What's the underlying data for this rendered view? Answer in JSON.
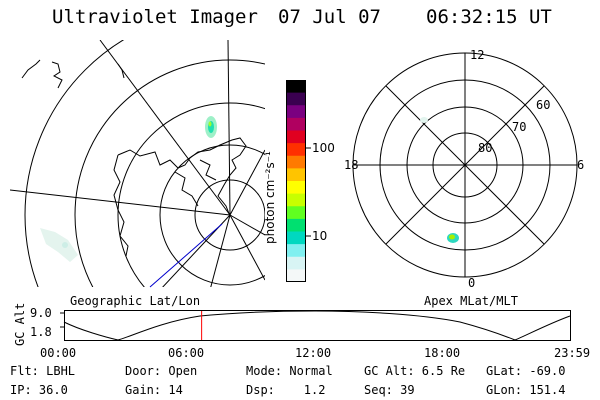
{
  "header": {
    "instrument": "Ultraviolet Imager",
    "date": "07 Jul 07",
    "time": "06:32:15 UT"
  },
  "colorbar": {
    "unit_label": "photon cm⁻²s⁻¹",
    "ticks": [
      "100",
      "10"
    ],
    "colors": [
      "#000000",
      "#3a0050",
      "#7a0080",
      "#b00060",
      "#e00020",
      "#ff3000",
      "#ff7a00",
      "#ffc400",
      "#ffff00",
      "#c8ff00",
      "#60ff20",
      "#00e070",
      "#00d8c0",
      "#80f0f0",
      "#d8f4f4",
      "#f4f8f8"
    ]
  },
  "polar_plot": {
    "lat_labels": [
      "80",
      "70",
      "60"
    ],
    "mlt_labels": {
      "top": "12",
      "left": "18",
      "right": "6",
      "bottom": "0"
    }
  },
  "timeline": {
    "left_label": "Geographic Lat/Lon",
    "right_label": "Apex MLat/MLT",
    "y_axis_label": "GC Alt",
    "y_ticks": [
      "9.0",
      "1.8"
    ],
    "x_ticks": [
      "00:00",
      "06:00",
      "12:00",
      "18:00",
      "23:59"
    ],
    "current_time_fraction": 0.272,
    "marker_color": "#ff0000"
  },
  "info": {
    "flt": "Flt: LBHL",
    "ip": "IP: 36.0",
    "door": "Door: Open",
    "gain": "Gain: 14",
    "mode": "Mode: Normal",
    "dsp": "Dsp:    1.2",
    "gc_alt": "GC Alt: 6.5 Re",
    "seq": "Seq: 39",
    "glat": "GLat: -69.0",
    "glon": "GLon: 151.4"
  }
}
